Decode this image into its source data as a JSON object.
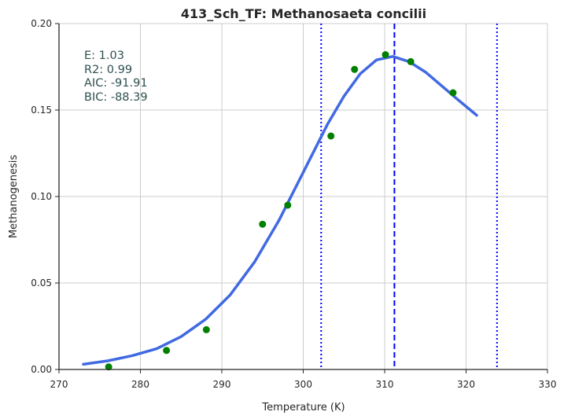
{
  "chart_data": {
    "type": "scatter",
    "title": "413_Sch_TF: Methanosaeta concilii",
    "xlabel": "Temperature (K)",
    "ylabel": "Methanogenesis",
    "xlim": [
      270,
      330
    ],
    "ylim": [
      0.0,
      0.2
    ],
    "x_ticks": [
      "270",
      "280",
      "290",
      "300",
      "310",
      "320",
      "330"
    ],
    "y_ticks": [
      "0.00",
      "0.05",
      "0.10",
      "0.15",
      "0.20"
    ],
    "grid": true,
    "points": {
      "color": "#008000",
      "x": [
        276.1,
        283.2,
        288.1,
        295.0,
        298.1,
        303.4,
        306.3,
        310.1,
        313.2,
        318.4
      ],
      "y": [
        0.0015,
        0.011,
        0.023,
        0.084,
        0.095,
        0.135,
        0.1735,
        0.182,
        0.178,
        0.16
      ]
    },
    "fit_curve": {
      "color": "#4169e1",
      "x": [
        273,
        276,
        279,
        282,
        285,
        288,
        291,
        294,
        297,
        300,
        303,
        305,
        307,
        309,
        311,
        313,
        315,
        317,
        319,
        321.3
      ],
      "y": [
        0.003,
        0.005,
        0.008,
        0.012,
        0.019,
        0.029,
        0.043,
        0.062,
        0.086,
        0.114,
        0.142,
        0.158,
        0.171,
        0.179,
        0.181,
        0.178,
        0.172,
        0.164,
        0.156,
        0.147
      ]
    },
    "vlines": [
      {
        "x": 302.2,
        "style": "dotted",
        "color": "#0000ff"
      },
      {
        "x": 311.2,
        "style": "dashed",
        "color": "#0000ff"
      },
      {
        "x": 323.8,
        "style": "dotted",
        "color": "#0000ff"
      }
    ],
    "annotations": [
      "E:  1.03",
      "R2:  0.99",
      "AIC: -91.91",
      "BIC: -88.39"
    ]
  }
}
